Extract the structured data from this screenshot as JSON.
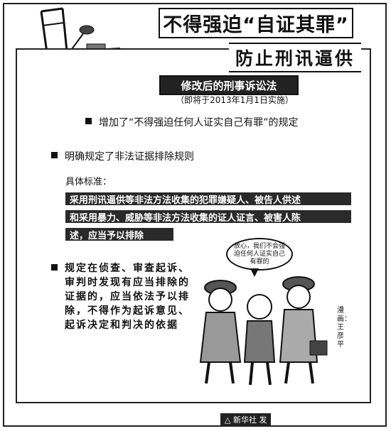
{
  "header": {
    "title": "不得强迫“自证其罪”",
    "subtitle": "防止刑讯逼供"
  },
  "law": {
    "banner": "修改后的刑事诉讼法",
    "note": "（即将于2013年1月1日实施）"
  },
  "points": {
    "p1": "增加了“不得强迫任何人证实自己有罪”的规定",
    "p2": "明确规定了非法证据排除规则",
    "standard_label": "具体标准：",
    "standard_lines": [
      "采用刑讯逼供等非法方法收集的犯罪嫌疑人、被告人供述",
      "和采用暴力、威胁等非法方法收集的证人证言、被害人陈",
      "述，应当予以排除"
    ],
    "p3": "规定在侦查、审查起诉、审判时发现有应当排除的证据的，应当依法予以排除，不得作为起诉意见、起诉决定和判决的依据"
  },
  "cartoon": {
    "speech": "放心，我们不会强迫任何人证实自己有罪的",
    "credit": "漫画：王彦平"
  },
  "source": "△ 新华社 发"
}
